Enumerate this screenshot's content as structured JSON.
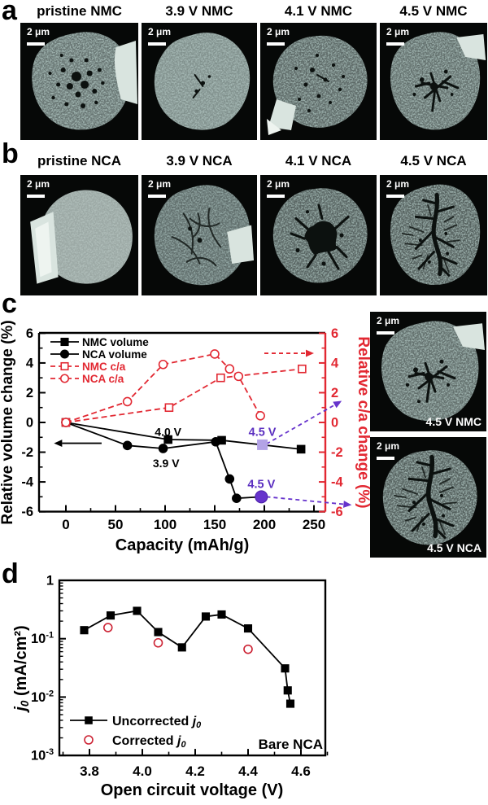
{
  "colors": {
    "red": "#e22832",
    "purple": "#6633cc",
    "purple_light": "#b3a3e6",
    "purple_text": "#5b2fc0",
    "black": "#000000"
  },
  "figure": {
    "panel_a": {
      "label": "a",
      "images": [
        {
          "title": "pristine NMC",
          "scalebar": "2 μm"
        },
        {
          "title": "3.9 V NMC",
          "scalebar": "2 μm"
        },
        {
          "title": "4.1 V NMC",
          "scalebar": "2 μm"
        },
        {
          "title": "4.5 V NMC",
          "scalebar": "2 μm"
        }
      ]
    },
    "panel_b": {
      "label": "b",
      "images": [
        {
          "title": "pristine NCA",
          "scalebar": "2 μm"
        },
        {
          "title": "3.9 V NCA",
          "scalebar": "2 μm"
        },
        {
          "title": "4.1 V NCA",
          "scalebar": "2 μm"
        },
        {
          "title": "4.5 V NCA",
          "scalebar": "2 μm"
        }
      ]
    },
    "panel_c": {
      "label": "c",
      "side_images": [
        {
          "label": "4.5 V NMC",
          "scalebar": "2 μm"
        },
        {
          "label": "4.5 V NCA",
          "scalebar": "2 μm"
        }
      ]
    },
    "panel_d": {
      "label": "d"
    }
  },
  "chart_data": [
    {
      "id": "volume-ca-chart",
      "type": "line",
      "xlabel": "Capacity (mAh/g)",
      "ylabel_left": "Relative volume change (%)",
      "ylabel_right": "Relative c/a change (%)",
      "xlim": [
        -27,
        262
      ],
      "ylim": [
        -6,
        6
      ],
      "xticks": [
        0,
        50,
        100,
        150,
        200,
        250
      ],
      "xminor": [
        25,
        75,
        125,
        175,
        225
      ],
      "yticks": [
        -6,
        -4,
        -2,
        0,
        2,
        4,
        6
      ],
      "yminor": [
        -5,
        -3,
        -1,
        1,
        3,
        5
      ],
      "grid": false,
      "legend_position": "top-left",
      "series": [
        {
          "name": "NMC volume",
          "axis": "left",
          "marker": "square",
          "fill": "filled",
          "line": "solid",
          "color": "#000000",
          "points": [
            [
              0,
              0
            ],
            [
              103,
              -1.15
            ],
            [
              157,
              -1.2
            ],
            [
              237,
              -1.8
            ]
          ]
        },
        {
          "name": "NCA volume",
          "axis": "left",
          "marker": "circle",
          "fill": "filled",
          "line": "solid",
          "color": "#000000",
          "points": [
            [
              0,
              0
            ],
            [
              62,
              -1.55
            ],
            [
              98,
              -1.75
            ],
            [
              151,
              -1.3
            ],
            [
              165,
              -3.8
            ],
            [
              172,
              -5.1
            ],
            [
              197,
              -5.0
            ]
          ]
        },
        {
          "name": "NMC c/a",
          "axis": "right",
          "marker": "square",
          "fill": "open",
          "line": "dashed",
          "color": "#e22832",
          "points": [
            [
              0,
              0
            ],
            [
              104,
              1.0
            ],
            [
              156,
              3.0
            ],
            [
              238,
              3.6
            ]
          ]
        },
        {
          "name": "NCA c/a",
          "axis": "right",
          "marker": "circle",
          "fill": "open",
          "line": "dashed",
          "color": "#e22832",
          "points": [
            [
              0,
              0
            ],
            [
              62,
              1.4
            ],
            [
              98,
              3.9
            ],
            [
              150,
              4.6
            ],
            [
              165,
              3.6
            ],
            [
              174,
              3.1
            ],
            [
              196,
              0.45
            ]
          ]
        }
      ],
      "highlights": [
        {
          "label": "4.5 V",
          "x": 198,
          "y": -1.5,
          "marker": "square",
          "color": "#b3a3e6",
          "label_color": "#5b2fc0"
        },
        {
          "label": "4.5 V",
          "x": 197,
          "y": -5.0,
          "marker": "circle",
          "color": "#6633cc",
          "label_color": "#5b2fc0"
        }
      ],
      "annotations": [
        {
          "text": "4.0 V",
          "x": 103,
          "y": -0.62,
          "color": "#000000"
        },
        {
          "text": "3.9 V",
          "x": 101,
          "y": -2.75,
          "color": "#000000"
        }
      ],
      "arrows": [
        {
          "x1": 36,
          "y1": -1.4,
          "x2": -12,
          "y2": -1.4,
          "color": "#000000",
          "style": "solid"
        },
        {
          "x1": 200,
          "y1": 4.65,
          "x2": 250,
          "y2": 4.65,
          "color": "#e22832",
          "style": "dashed"
        },
        {
          "x1": 202,
          "y1": -1.45,
          "x2": 278,
          "y2": 1.45,
          "color": "#6633cc",
          "style": "dashed"
        },
        {
          "x1": 202,
          "y1": -5.0,
          "x2": 288,
          "y2": -5.55,
          "color": "#6633cc",
          "style": "dashed"
        }
      ]
    },
    {
      "id": "exchange-current-chart",
      "type": "line",
      "log_y": true,
      "xlabel": "Open circuit voltage (V)",
      "ylabel": "j₀ (mA/cm²)",
      "xlim": [
        3.686,
        4.692
      ],
      "ylim": [
        0.001,
        1
      ],
      "xticks": [
        3.8,
        4.0,
        4.2,
        4.4,
        4.6
      ],
      "xminor": [
        3.7,
        3.9,
        4.1,
        4.3,
        4.5,
        4.7
      ],
      "ytick_labels": [
        {
          "value": 1,
          "label": "1"
        },
        {
          "value": 0.1,
          "label": "10⁻¹"
        },
        {
          "value": 0.01,
          "label": "10⁻²"
        },
        {
          "value": 0.001,
          "label": "10⁻³"
        }
      ],
      "grid": false,
      "legend_position": "bottom-left",
      "corner_label": "Bare NCA",
      "series": [
        {
          "name": "Uncorrected j₀",
          "marker": "square",
          "fill": "filled",
          "line": "solid",
          "color": "#000000",
          "points": [
            [
              3.78,
              0.14
            ],
            [
              3.88,
              0.25
            ],
            [
              3.98,
              0.3
            ],
            [
              4.06,
              0.13
            ],
            [
              4.15,
              0.071
            ],
            [
              4.24,
              0.24
            ],
            [
              4.3,
              0.26
            ],
            [
              4.4,
              0.15
            ],
            [
              4.54,
              0.031
            ],
            [
              4.55,
              0.013
            ],
            [
              4.56,
              0.0077
            ]
          ]
        },
        {
          "name": "Corrected j₀",
          "marker": "circle",
          "fill": "open",
          "line": "none",
          "color": "#cc2233",
          "points": [
            [
              3.87,
              0.155
            ],
            [
              4.06,
              0.085
            ],
            [
              4.4,
              0.066
            ]
          ]
        }
      ]
    }
  ]
}
